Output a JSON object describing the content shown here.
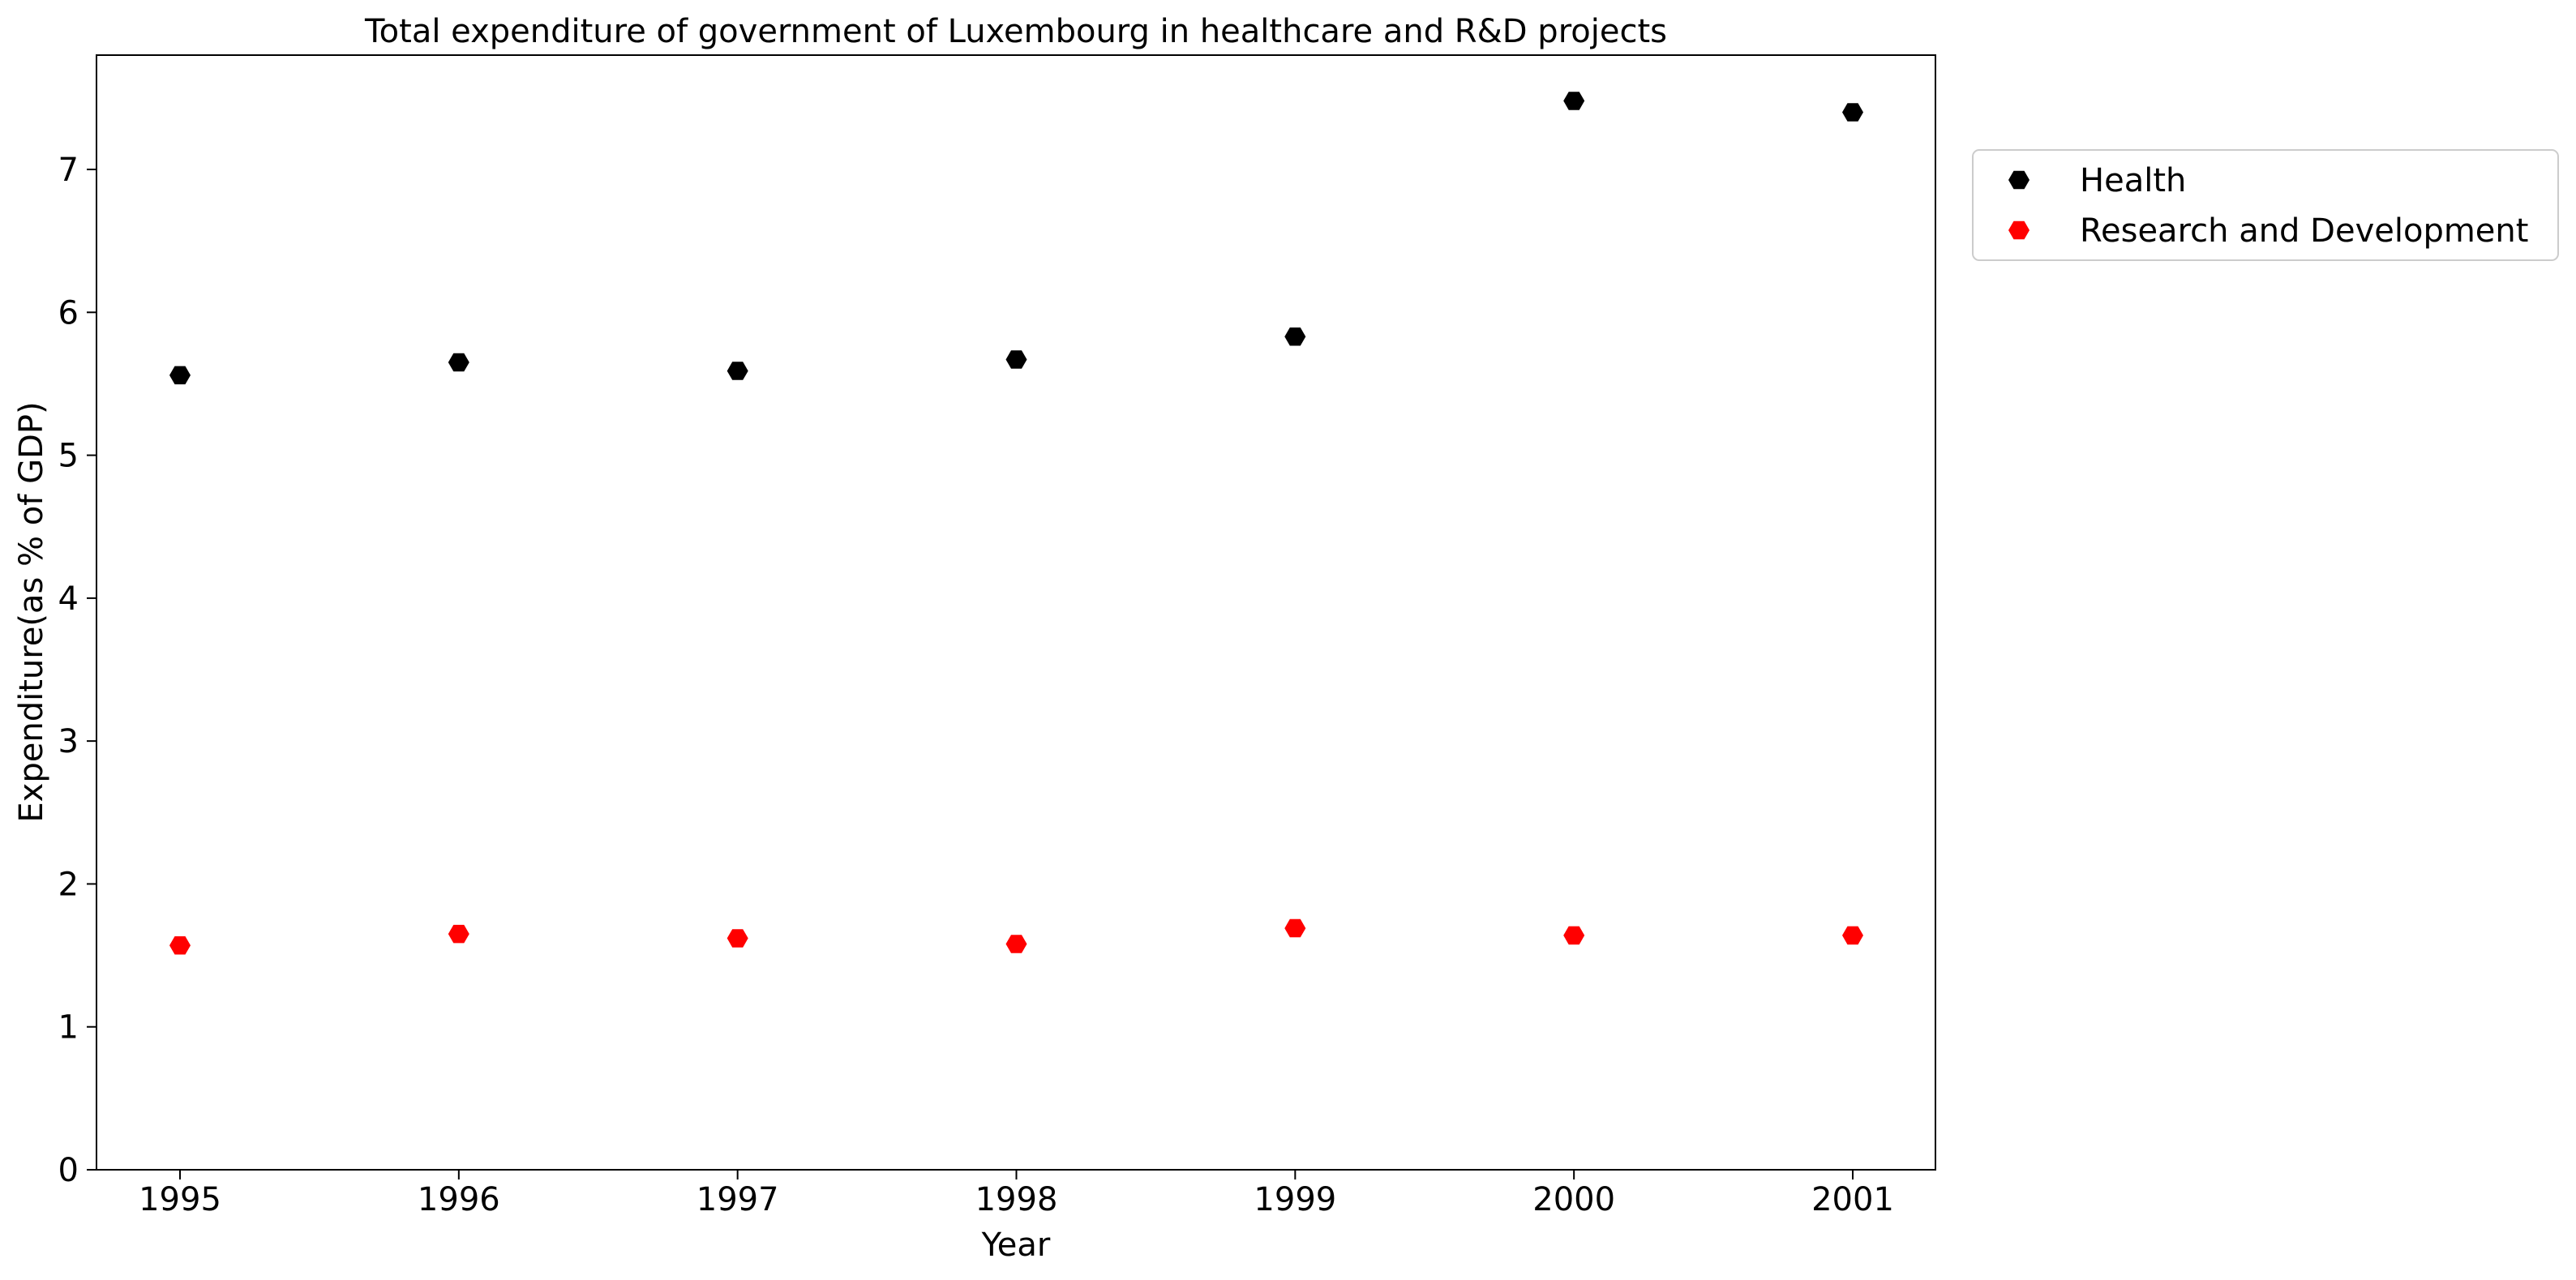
{
  "chart_data": {
    "type": "scatter",
    "title": "Total expenditure of government of Luxembourg in healthcare and R&D projects",
    "xlabel": "Year",
    "ylabel": "Expenditure(as % of GDP)",
    "x": [
      "1995",
      "1996",
      "1997",
      "1998",
      "1999",
      "2000",
      "2001"
    ],
    "ylim": [
      0,
      7.8
    ],
    "yticks": [
      0,
      1,
      2,
      3,
      4,
      5,
      6,
      7
    ],
    "grid": false,
    "legend_position": "outside-top-right",
    "series": [
      {
        "name": "Health",
        "color": "#000000",
        "marker": "hexagon",
        "values": [
          5.56,
          5.65,
          5.59,
          5.67,
          5.83,
          7.48,
          7.4
        ]
      },
      {
        "name": "Research and Development",
        "color": "#ff0000",
        "marker": "hexagon",
        "values": [
          1.57,
          1.65,
          1.62,
          1.58,
          1.69,
          1.64,
          1.64
        ]
      }
    ]
  }
}
